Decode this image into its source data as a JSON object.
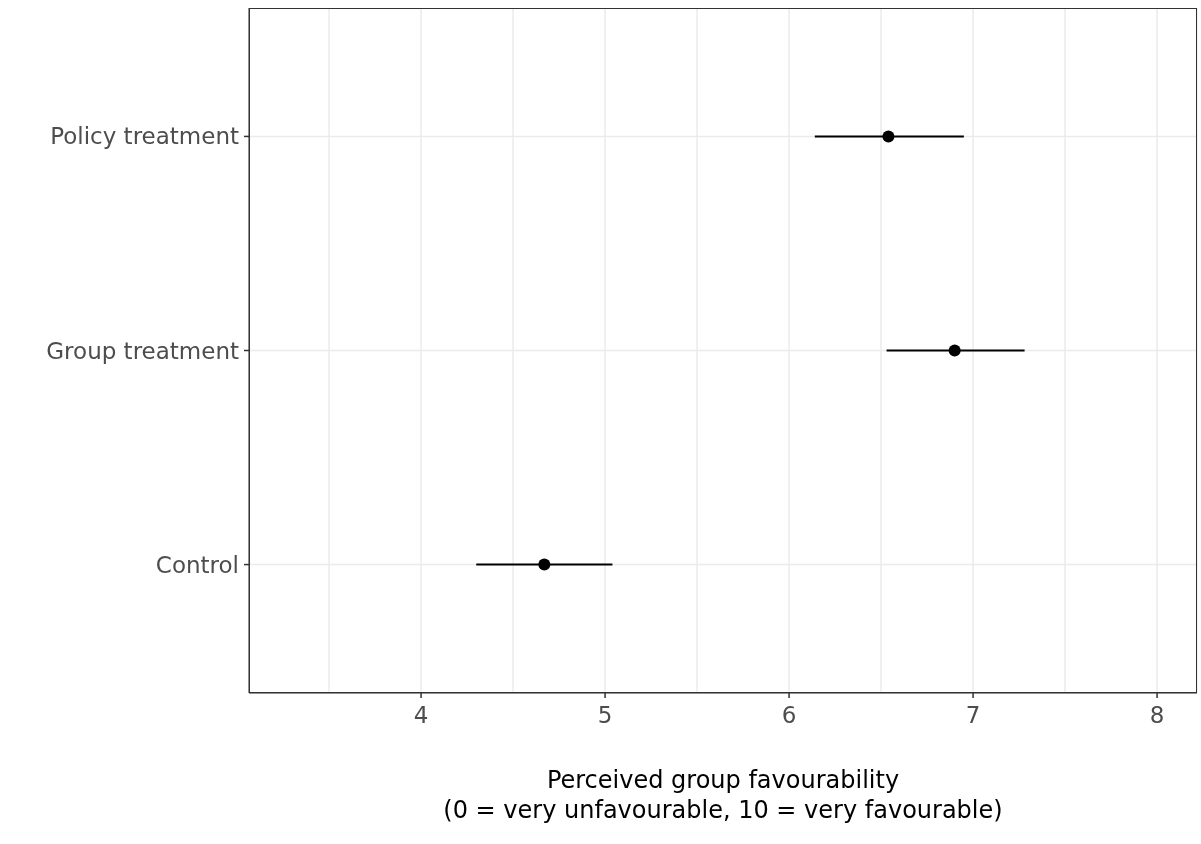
{
  "chart_data": {
    "type": "scatter",
    "orientation": "horizontal",
    "categories": [
      "Policy treatment",
      "Group treatment",
      "Control"
    ],
    "series": [
      {
        "color": "#000000",
        "values": [
          6.54,
          6.9,
          4.67
        ],
        "errors": [
          [
            6.14,
            6.95
          ],
          [
            6.53,
            7.28
          ],
          [
            4.3,
            5.04
          ]
        ]
      }
    ],
    "xlim": [
      3.065,
      8.217
    ],
    "xticks": [
      {
        "value": 3.5,
        "label": null
      },
      4,
      {
        "value": 4.5,
        "label": null
      },
      5,
      {
        "value": 5.5,
        "label": null
      },
      6,
      {
        "value": 6.5,
        "label": null
      },
      7,
      {
        "value": 7.5,
        "label": null
      },
      8
    ],
    "xlabel": "Perceived group favourability\n(0 = very unfavourable, 10 = very favourable)",
    "grid": true,
    "marker": "circle"
  }
}
